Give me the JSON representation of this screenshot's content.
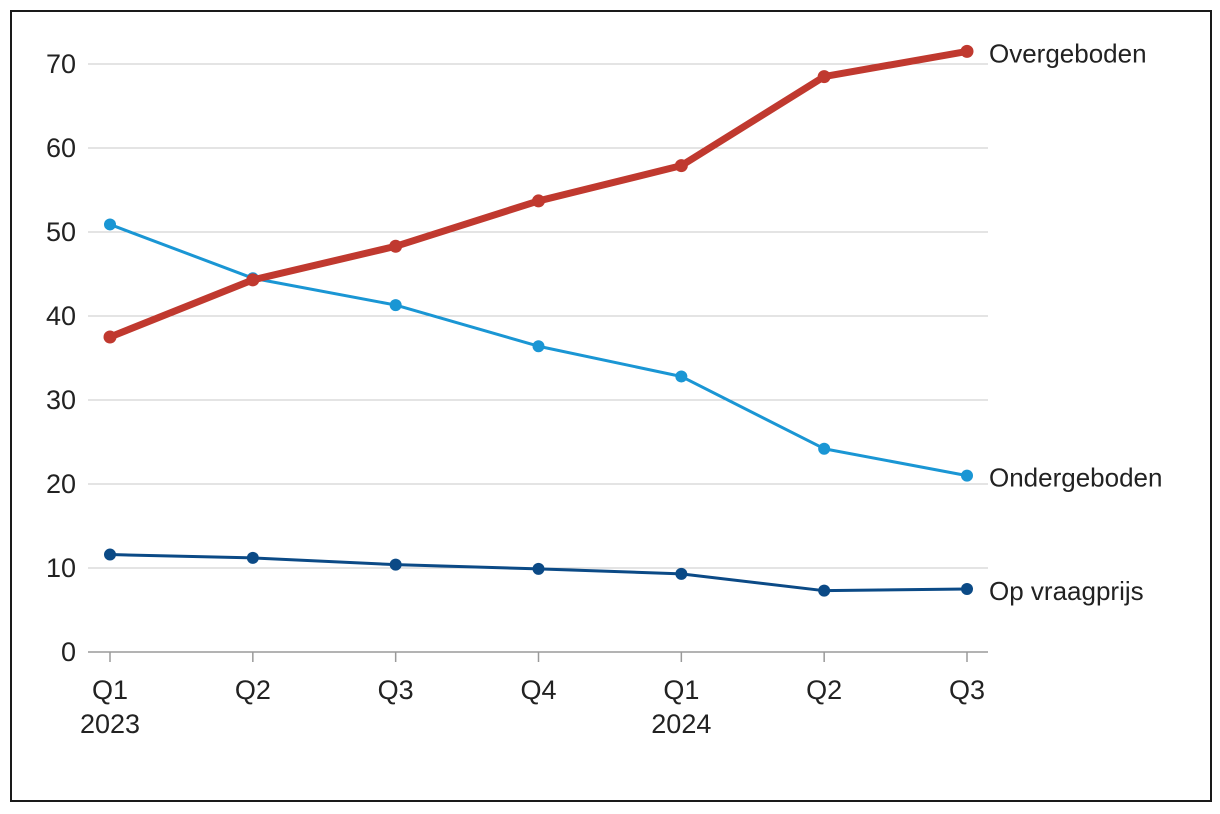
{
  "chart_data": {
    "type": "line",
    "title": "",
    "xlabel": "",
    "ylabel": "",
    "categories": [
      {
        "quarter": "Q1",
        "year": "2023"
      },
      {
        "quarter": "Q2",
        "year": ""
      },
      {
        "quarter": "Q3",
        "year": ""
      },
      {
        "quarter": "Q4",
        "year": ""
      },
      {
        "quarter": "Q1",
        "year": "2024"
      },
      {
        "quarter": "Q2",
        "year": ""
      },
      {
        "quarter": "Q3",
        "year": ""
      }
    ],
    "ylim": [
      0,
      70
    ],
    "yticks": [
      "0",
      "10",
      "20",
      "30",
      "40",
      "50",
      "60",
      "70"
    ],
    "grid": true,
    "legend": "labels at line ends (right)",
    "series": [
      {
        "name": "Overgeboden",
        "color": "#c0392f",
        "values": [
          37.5,
          44.3,
          48.3,
          53.7,
          57.9,
          68.5,
          71.5
        ]
      },
      {
        "name": "Ondergeboden",
        "color": "#1a96d4",
        "values": [
          50.9,
          44.5,
          41.3,
          36.4,
          32.8,
          24.2,
          21.0
        ]
      },
      {
        "name": "Op vraagprijs",
        "color": "#0b4a86",
        "values": [
          11.6,
          11.2,
          10.4,
          9.9,
          9.3,
          7.3,
          7.5
        ]
      }
    ]
  }
}
